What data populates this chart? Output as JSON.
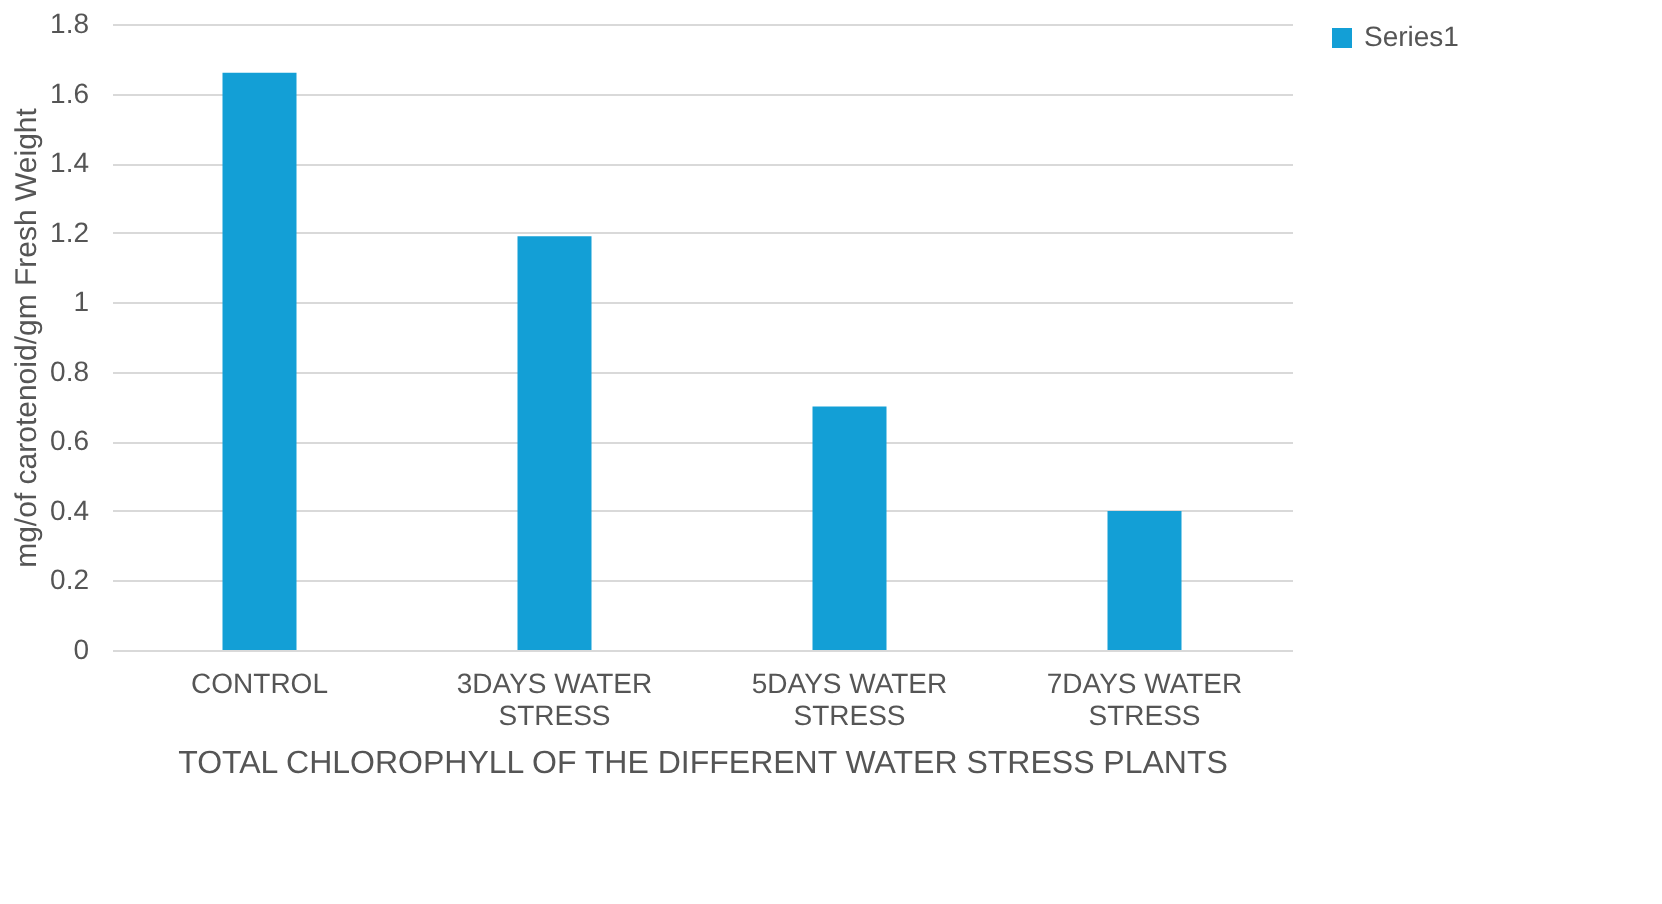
{
  "chart_data": {
    "type": "bar",
    "xlabel": "TOTAL CHLOROPHYLL OF THE DIFFERENT WATER STRESS PLANTS",
    "ylabel": "mg/of carotenoid/gm Fresh Weight",
    "categories": [
      "CONTROL",
      "3DAYS WATER STRESS",
      "5DAYS WATER STRESS",
      "7DAYS WATER STRESS"
    ],
    "series": [
      {
        "name": "Series1",
        "color": "#139fd6",
        "values": [
          1.66,
          1.19,
          0.7,
          0.4
        ]
      }
    ],
    "ylim": [
      0,
      1.8
    ],
    "yticks": [
      0,
      0.2,
      0.4,
      0.6,
      0.8,
      1,
      1.2,
      1.4,
      1.6,
      1.8
    ],
    "grid": "y",
    "legend": "right"
  }
}
